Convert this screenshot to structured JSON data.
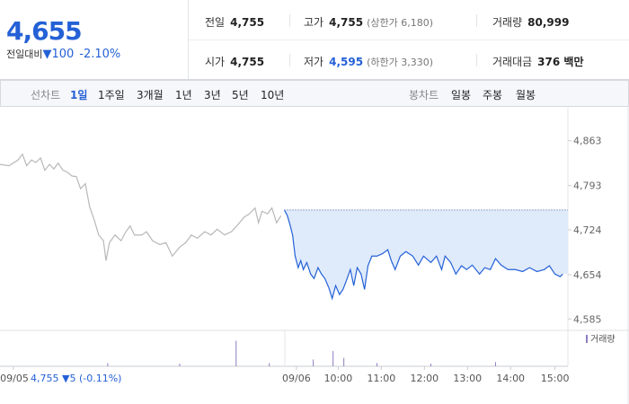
{
  "header": {
    "price": "4,655",
    "change_label": "전일대비",
    "change": "▼100",
    "change_rate": "-2.10%",
    "stats": [
      {
        "label": "전일",
        "value": "4,755"
      },
      {
        "label": "고가",
        "value": "4,755",
        "note": "(상한가 6,180)"
      },
      {
        "label": "거래량",
        "value": "80,999"
      },
      {
        "label": "시가",
        "value": "4,755"
      },
      {
        "label": "저가",
        "value": "4,595",
        "note": "(하한가 3,330)"
      },
      {
        "label": "거래대금",
        "value": "376 백만"
      }
    ]
  },
  "tabs": {
    "line_label": "선차트",
    "line": [
      "1일",
      "1주일",
      "3개월",
      "1년",
      "3년",
      "5년",
      "10년"
    ],
    "candle_label": "봉차트",
    "candle": [
      "일봉",
      "주봉",
      "월봉"
    ]
  },
  "chart_data": {
    "type": "line",
    "series": [
      {
        "color": "#b8b8b8",
        "x": [
          -6.6,
          -6.39,
          -6.18,
          -6.08,
          -5.98,
          -5.87,
          -5.77,
          -5.66,
          -5.56,
          -5.45,
          -5.35,
          -5.25,
          -5.14,
          -5.04,
          -4.93,
          -4.83,
          -4.73,
          -4.62,
          -4.52,
          -4.41,
          -4.31,
          -4.2,
          -4.14,
          -4.06,
          -3.93,
          -3.79,
          -3.68,
          -3.58,
          -3.48,
          -3.31,
          -3.2,
          -3.06,
          -2.89,
          -2.75,
          -2.6,
          -2.43,
          -2.29,
          -2.16,
          -2.02,
          -1.85,
          -1.7,
          -1.56,
          -1.39,
          -1.23,
          -1.08,
          -0.93,
          -0.81,
          -0.68,
          -0.6,
          -0.52,
          -0.39,
          -0.29,
          -0.18,
          -0.08
        ],
        "values": [
          4826,
          4824,
          4833,
          4842,
          4824,
          4833,
          4829,
          4836,
          4817,
          4826,
          4819,
          4828,
          4817,
          4814,
          4808,
          4807,
          4788,
          4796,
          4760,
          4739,
          4716,
          4707,
          4676,
          4704,
          4716,
          4707,
          4721,
          4730,
          4716,
          4716,
          4721,
          4707,
          4701,
          4704,
          4683,
          4697,
          4704,
          4716,
          4711,
          4721,
          4716,
          4725,
          4716,
          4721,
          4732,
          4744,
          4749,
          4758,
          4735,
          4753,
          4749,
          4758,
          4735,
          4746
        ]
      },
      {
        "color": "#2461d6",
        "x": [
          0,
          0.07,
          0.13,
          0.19,
          0.25,
          0.32,
          0.38,
          0.44,
          0.52,
          0.61,
          0.69,
          0.78,
          0.86,
          0.94,
          1.03,
          1.11,
          1.19,
          1.28,
          1.36,
          1.44,
          1.53,
          1.61,
          1.69,
          1.78,
          1.86,
          1.94,
          2.03,
          2.15,
          2.28,
          2.4,
          2.48,
          2.57,
          2.69,
          2.82,
          2.98,
          3.11,
          3.23,
          3.4,
          3.53,
          3.65,
          3.73,
          3.86,
          3.98,
          4.11,
          4.23,
          4.36,
          4.53,
          4.65,
          4.78,
          4.9,
          5.03,
          5.19,
          5.36,
          5.53,
          5.69,
          5.86,
          6.03,
          6.15,
          6.28,
          6.4,
          6.46
        ],
        "values": [
          4755,
          4746,
          4732,
          4716,
          4683,
          4665,
          4676,
          4662,
          4673,
          4655,
          4648,
          4665,
          4655,
          4648,
          4634,
          4617,
          4637,
          4623,
          4631,
          4645,
          4662,
          4637,
          4665,
          4655,
          4631,
          4668,
          4683,
          4683,
          4687,
          4693,
          4676,
          4662,
          4683,
          4690,
          4683,
          4669,
          4683,
          4673,
          4683,
          4662,
          4683,
          4673,
          4655,
          4668,
          4662,
          4669,
          4655,
          4665,
          4662,
          4679,
          4669,
          4662,
          4662,
          4659,
          4665,
          4659,
          4662,
          4668,
          4655,
          4651,
          4655
        ]
      }
    ],
    "reference": 4755,
    "reference_color": "#3a5a8a",
    "fill_color": "#dfeafb",
    "xlim": [
      -6.6,
      6.58
    ],
    "ylim": [
      4570,
      4885
    ],
    "xticks": [
      {
        "value": -6.29,
        "label": "09/05"
      },
      {
        "value": 0.28,
        "label": "09/06"
      },
      {
        "value": 1.25,
        "label": "10:00"
      },
      {
        "value": 2.25,
        "label": "11:00"
      },
      {
        "value": 3.25,
        "label": "12:00"
      },
      {
        "value": 4.25,
        "label": "13:00"
      },
      {
        "value": 5.25,
        "label": "14:00"
      },
      {
        "value": 6.28,
        "label": "15:00"
      }
    ],
    "yticks": [
      {
        "value": 4585,
        "label": "4,585"
      },
      {
        "value": 4654,
        "label": "4,654"
      },
      {
        "value": 4724,
        "label": "4,724"
      },
      {
        "value": 4793,
        "label": "4,793"
      },
      {
        "value": 4863,
        "label": "4,863"
      }
    ],
    "grid": false,
    "volume": {
      "name": "거래량",
      "color": "#8e7cc3",
      "x": [
        -4.1,
        -2.43,
        -1.12,
        -0.35,
        0.67,
        1.13,
        1.38,
        2.15,
        3.4,
        4.9
      ],
      "values": [
        10,
        8,
        79,
        10,
        21,
        47,
        26,
        10,
        8,
        13
      ],
      "ylim": [
        0,
        100
      ]
    },
    "note": "4,755 ▼5 (-0.11%)"
  }
}
